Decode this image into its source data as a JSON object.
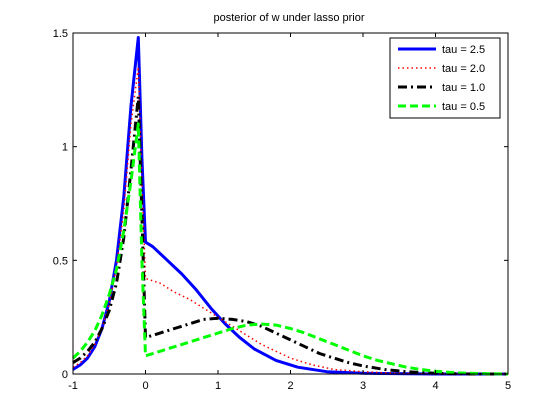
{
  "chart_data": {
    "type": "line",
    "title": "posterior of w under lasso prior",
    "xlabel": "",
    "ylabel": "",
    "xlim": [
      -1,
      5
    ],
    "ylim": [
      0,
      1.5
    ],
    "xticks": [
      -1,
      0,
      1,
      2,
      3,
      4,
      5
    ],
    "yticks": [
      0,
      0.5,
      1,
      1.5
    ],
    "ytick_labels": [
      "0",
      "0.5",
      "1",
      "1.5"
    ],
    "grid": false,
    "legend_position": "top-right",
    "series": [
      {
        "name": "tau = 2.5",
        "color": "#0000ff",
        "style": "solid",
        "points": [
          [
            -1,
            0.02
          ],
          [
            -0.9,
            0.04
          ],
          [
            -0.8,
            0.07
          ],
          [
            -0.7,
            0.12
          ],
          [
            -0.6,
            0.2
          ],
          [
            -0.5,
            0.32
          ],
          [
            -0.4,
            0.5
          ],
          [
            -0.3,
            0.78
          ],
          [
            -0.2,
            1.18
          ],
          [
            -0.1,
            1.48
          ],
          [
            -0.05,
            0.95
          ],
          [
            0,
            0.58
          ],
          [
            0.1,
            0.56
          ],
          [
            0.3,
            0.5
          ],
          [
            0.5,
            0.44
          ],
          [
            0.7,
            0.37
          ],
          [
            0.9,
            0.29
          ],
          [
            1.1,
            0.22
          ],
          [
            1.3,
            0.16
          ],
          [
            1.5,
            0.11
          ],
          [
            1.8,
            0.06
          ],
          [
            2.1,
            0.03
          ],
          [
            2.5,
            0.01
          ],
          [
            3,
            0.003
          ],
          [
            4,
            0
          ],
          [
            5,
            0
          ]
        ]
      },
      {
        "name": "tau = 2.0",
        "color": "#ff0000",
        "style": "dotted",
        "points": [
          [
            -1,
            0.03
          ],
          [
            -0.9,
            0.05
          ],
          [
            -0.8,
            0.08
          ],
          [
            -0.7,
            0.13
          ],
          [
            -0.6,
            0.2
          ],
          [
            -0.5,
            0.31
          ],
          [
            -0.4,
            0.47
          ],
          [
            -0.3,
            0.72
          ],
          [
            -0.2,
            1.1
          ],
          [
            -0.1,
            1.35
          ],
          [
            -0.05,
            0.85
          ],
          [
            0,
            0.42
          ],
          [
            0.2,
            0.4
          ],
          [
            0.4,
            0.36
          ],
          [
            0.6,
            0.33
          ],
          [
            0.8,
            0.29
          ],
          [
            1,
            0.25
          ],
          [
            1.2,
            0.21
          ],
          [
            1.4,
            0.17
          ],
          [
            1.6,
            0.13
          ],
          [
            1.8,
            0.1
          ],
          [
            2,
            0.07
          ],
          [
            2.3,
            0.04
          ],
          [
            2.6,
            0.02
          ],
          [
            3,
            0.01
          ],
          [
            3.5,
            0.002
          ],
          [
            4,
            0
          ],
          [
            5,
            0
          ]
        ]
      },
      {
        "name": "tau = 1.0",
        "color": "#000000",
        "style": "dashdot",
        "points": [
          [
            -1,
            0.05
          ],
          [
            -0.9,
            0.07
          ],
          [
            -0.8,
            0.1
          ],
          [
            -0.7,
            0.14
          ],
          [
            -0.6,
            0.2
          ],
          [
            -0.5,
            0.28
          ],
          [
            -0.4,
            0.4
          ],
          [
            -0.3,
            0.6
          ],
          [
            -0.2,
            0.9
          ],
          [
            -0.1,
            1.22
          ],
          [
            -0.05,
            0.7
          ],
          [
            0,
            0.16
          ],
          [
            0.2,
            0.18
          ],
          [
            0.4,
            0.2
          ],
          [
            0.6,
            0.22
          ],
          [
            0.8,
            0.24
          ],
          [
            1,
            0.245
          ],
          [
            1.2,
            0.24
          ],
          [
            1.4,
            0.23
          ],
          [
            1.6,
            0.21
          ],
          [
            1.8,
            0.18
          ],
          [
            2,
            0.15
          ],
          [
            2.2,
            0.12
          ],
          [
            2.4,
            0.09
          ],
          [
            2.6,
            0.07
          ],
          [
            2.8,
            0.05
          ],
          [
            3,
            0.035
          ],
          [
            3.3,
            0.02
          ],
          [
            3.6,
            0.01
          ],
          [
            4,
            0.003
          ],
          [
            4.5,
            0
          ],
          [
            5,
            0
          ]
        ]
      },
      {
        "name": "tau = 0.5",
        "color": "#00ff00",
        "style": "dashed",
        "points": [
          [
            -1,
            0.07
          ],
          [
            -0.9,
            0.1
          ],
          [
            -0.8,
            0.14
          ],
          [
            -0.7,
            0.19
          ],
          [
            -0.6,
            0.26
          ],
          [
            -0.5,
            0.35
          ],
          [
            -0.4,
            0.46
          ],
          [
            -0.3,
            0.63
          ],
          [
            -0.2,
            0.85
          ],
          [
            -0.1,
            1.1
          ],
          [
            -0.05,
            0.5
          ],
          [
            0,
            0.08
          ],
          [
            0.2,
            0.1
          ],
          [
            0.4,
            0.12
          ],
          [
            0.6,
            0.14
          ],
          [
            0.8,
            0.16
          ],
          [
            1,
            0.18
          ],
          [
            1.2,
            0.2
          ],
          [
            1.4,
            0.215
          ],
          [
            1.6,
            0.22
          ],
          [
            1.8,
            0.215
          ],
          [
            2,
            0.2
          ],
          [
            2.2,
            0.18
          ],
          [
            2.4,
            0.155
          ],
          [
            2.6,
            0.13
          ],
          [
            2.8,
            0.105
          ],
          [
            3,
            0.08
          ],
          [
            3.2,
            0.06
          ],
          [
            3.4,
            0.045
          ],
          [
            3.6,
            0.03
          ],
          [
            3.8,
            0.02
          ],
          [
            4,
            0.012
          ],
          [
            4.3,
            0.005
          ],
          [
            4.6,
            0.002
          ],
          [
            5,
            0
          ]
        ]
      }
    ]
  }
}
